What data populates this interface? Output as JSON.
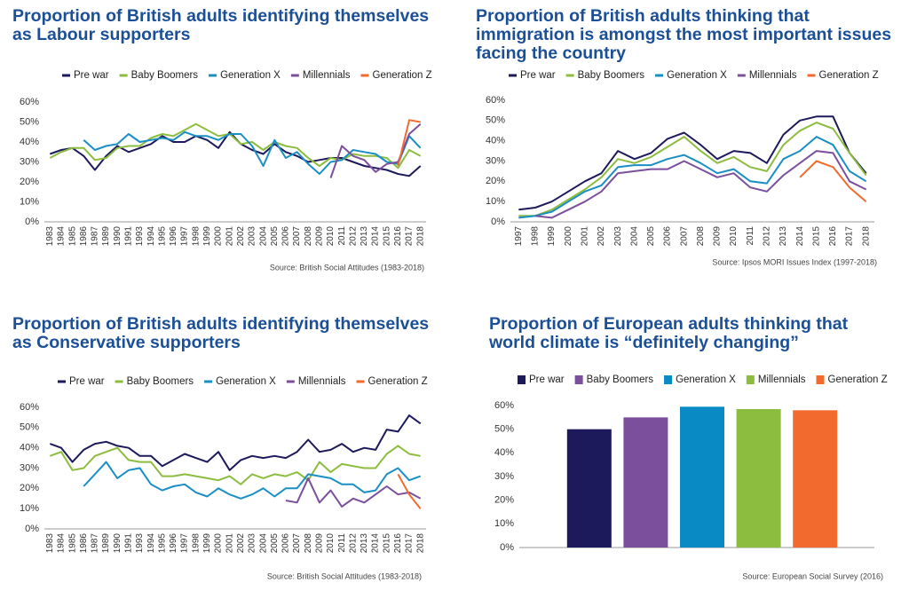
{
  "chart_data": [
    {
      "type": "line",
      "title": "Proportion of British adults identifying themselves as Labour supporters",
      "source": "Source: British Social Attitudes (1983-2018)",
      "categories": [
        "1983",
        "1984",
        "1985",
        "1986",
        "1987",
        "1989",
        "1990",
        "1991",
        "1993",
        "1994",
        "1995",
        "1996",
        "1997",
        "1998",
        "1999",
        "2000",
        "2001",
        "2002",
        "2003",
        "2004",
        "2005",
        "2006",
        "2007",
        "2008",
        "2009",
        "2010",
        "2011",
        "2012",
        "2013",
        "2014",
        "2015",
        "2016",
        "2017",
        "2018"
      ],
      "ylim": [
        0,
        60
      ],
      "yticks": [
        {
          "value": 0,
          "label": "0%"
        },
        {
          "value": 10,
          "label": "10%"
        },
        {
          "value": 20,
          "label": "20%"
        },
        {
          "value": 30,
          "label": "30%"
        },
        {
          "value": 40,
          "label": "40%"
        },
        {
          "value": 50,
          "label": "50%"
        },
        {
          "value": 60,
          "label": "60%"
        }
      ],
      "series": [
        {
          "name": "Pre war",
          "color": "#1d1a5c",
          "values": [
            34,
            36,
            37,
            33,
            26,
            33,
            38,
            35,
            37,
            39,
            43,
            40,
            40,
            43,
            41,
            37,
            45,
            39,
            36,
            34,
            39,
            35,
            33,
            30,
            31,
            32,
            32,
            30,
            28,
            27,
            26,
            24,
            23,
            28
          ]
        },
        {
          "name": "Baby Boomers",
          "color": "#8cbd3f",
          "values": [
            32,
            35,
            37,
            37,
            31,
            32,
            37,
            38,
            38,
            42,
            44,
            43,
            46,
            49,
            46,
            43,
            44,
            39,
            40,
            36,
            40,
            38,
            37,
            32,
            28,
            32,
            31,
            34,
            33,
            33,
            32,
            27,
            36,
            33
          ]
        },
        {
          "name": "Generation X",
          "color": "#1a8fc4",
          "values": [
            null,
            null,
            null,
            41,
            36,
            38,
            39,
            44,
            40,
            41,
            42,
            41,
            45,
            43,
            43,
            41,
            44,
            44,
            38,
            28,
            41,
            32,
            35,
            29,
            24,
            30,
            31,
            36,
            35,
            34,
            30,
            29,
            43,
            37
          ]
        },
        {
          "name": "Millennials",
          "color": "#7b4f9c",
          "values": [
            null,
            null,
            null,
            null,
            null,
            null,
            null,
            null,
            null,
            null,
            null,
            null,
            null,
            null,
            null,
            null,
            null,
            null,
            null,
            null,
            null,
            null,
            null,
            null,
            null,
            22,
            38,
            33,
            31,
            25,
            29,
            30,
            44,
            49
          ]
        },
        {
          "name": "Generation Z",
          "color": "#f26a2e",
          "values": [
            null,
            null,
            null,
            null,
            null,
            null,
            null,
            null,
            null,
            null,
            null,
            null,
            null,
            null,
            null,
            null,
            null,
            null,
            null,
            null,
            null,
            null,
            null,
            null,
            null,
            null,
            null,
            null,
            null,
            null,
            null,
            28,
            51,
            50
          ]
        }
      ]
    },
    {
      "type": "line",
      "title": "Proportion of British adults thinking that immigration is amongst the most important issues facing the country",
      "source": "Source: Ipsos MORI Issues Index (1997-2018)",
      "categories": [
        "1997",
        "1998",
        "1999",
        "2000",
        "2001",
        "2002",
        "2003",
        "2004",
        "2005",
        "2006",
        "2007",
        "2008",
        "2009",
        "2010",
        "2011",
        "2012",
        "2013",
        "2014",
        "2015",
        "2016",
        "2017",
        "2018"
      ],
      "ylim": [
        0,
        60
      ],
      "yticks": [
        {
          "value": 0,
          "label": "0%"
        },
        {
          "value": 10,
          "label": "10%"
        },
        {
          "value": 20,
          "label": "20%"
        },
        {
          "value": 30,
          "label": "30%"
        },
        {
          "value": 40,
          "label": "40%"
        },
        {
          "value": 50,
          "label": "50%"
        },
        {
          "value": 60,
          "label": "60%"
        }
      ],
      "series": [
        {
          "name": "Pre war",
          "color": "#1d1a5c",
          "values": [
            6,
            7,
            10,
            15,
            20,
            24,
            35,
            31,
            34,
            41,
            44,
            38,
            31,
            35,
            34,
            29,
            43,
            50,
            52,
            52,
            34,
            24
          ]
        },
        {
          "name": "Baby Boomers",
          "color": "#8cbd3f",
          "values": [
            3,
            3,
            6,
            11,
            16,
            22,
            31,
            29,
            32,
            37,
            42,
            35,
            29,
            32,
            27,
            25,
            38,
            45,
            49,
            46,
            34,
            23
          ]
        },
        {
          "name": "Generation X",
          "color": "#1a8fc4",
          "values": [
            2,
            3,
            5,
            10,
            15,
            18,
            27,
            28,
            28,
            31,
            33,
            29,
            24,
            26,
            20,
            19,
            31,
            35,
            42,
            38,
            25,
            20
          ]
        },
        {
          "name": "Millennials",
          "color": "#7b4f9c",
          "values": [
            null,
            3,
            2,
            6,
            10,
            15,
            24,
            25,
            26,
            26,
            30,
            26,
            22,
            24,
            17,
            15,
            23,
            29,
            35,
            34,
            20,
            16
          ]
        },
        {
          "name": "Generation Z",
          "color": "#f26a2e",
          "values": [
            null,
            null,
            null,
            null,
            null,
            null,
            null,
            null,
            null,
            null,
            null,
            null,
            null,
            null,
            null,
            null,
            null,
            22,
            30,
            27,
            17,
            10
          ]
        }
      ]
    },
    {
      "type": "line",
      "title": "Proportion of British adults identifying themselves as Conservative supporters",
      "source": "Source: British Social Attitudes (1983-2018)",
      "categories": [
        "1983",
        "1984",
        "1985",
        "1986",
        "1987",
        "1989",
        "1990",
        "1991",
        "1993",
        "1994",
        "1995",
        "1996",
        "1997",
        "1998",
        "1999",
        "2000",
        "2001",
        "2002",
        "2003",
        "2004",
        "2005",
        "2006",
        "2007",
        "2008",
        "2009",
        "2010",
        "2011",
        "2012",
        "2013",
        "2014",
        "2015",
        "2016",
        "2017",
        "2018"
      ],
      "ylim": [
        0,
        60
      ],
      "yticks": [
        {
          "value": 0,
          "label": "0%"
        },
        {
          "value": 10,
          "label": "10%"
        },
        {
          "value": 20,
          "label": "20%"
        },
        {
          "value": 30,
          "label": "30%"
        },
        {
          "value": 40,
          "label": "40%"
        },
        {
          "value": 50,
          "label": "50%"
        },
        {
          "value": 60,
          "label": "60%"
        }
      ],
      "series": [
        {
          "name": "Pre war",
          "color": "#1d1a5c",
          "values": [
            42,
            40,
            33,
            39,
            42,
            43,
            41,
            40,
            36,
            36,
            31,
            34,
            37,
            35,
            33,
            38,
            29,
            34,
            36,
            35,
            36,
            35,
            38,
            44,
            38,
            39,
            42,
            38,
            40,
            39,
            49,
            48,
            56,
            52
          ]
        },
        {
          "name": "Baby Boomers",
          "color": "#8cbd3f",
          "values": [
            36,
            38,
            29,
            30,
            36,
            38,
            40,
            34,
            33,
            33,
            26,
            26,
            27,
            26,
            25,
            24,
            26,
            22,
            27,
            25,
            27,
            26,
            28,
            24,
            33,
            28,
            32,
            31,
            30,
            30,
            37,
            41,
            37,
            36
          ]
        },
        {
          "name": "Generation X",
          "color": "#1a8fc4",
          "values": [
            null,
            null,
            null,
            21,
            27,
            33,
            25,
            29,
            30,
            22,
            19,
            21,
            22,
            18,
            16,
            20,
            17,
            15,
            17,
            20,
            16,
            20,
            20,
            27,
            26,
            25,
            22,
            22,
            18,
            19,
            27,
            30,
            24,
            26
          ]
        },
        {
          "name": "Millennials",
          "color": "#7b4f9c",
          "values": [
            null,
            null,
            null,
            null,
            null,
            null,
            null,
            null,
            null,
            null,
            null,
            null,
            null,
            null,
            null,
            null,
            null,
            null,
            null,
            null,
            null,
            14,
            13,
            25,
            13,
            19,
            11,
            15,
            13,
            17,
            21,
            17,
            18,
            15
          ]
        },
        {
          "name": "Generation Z",
          "color": "#f26a2e",
          "values": [
            null,
            null,
            null,
            null,
            null,
            null,
            null,
            null,
            null,
            null,
            null,
            null,
            null,
            null,
            null,
            null,
            null,
            null,
            null,
            null,
            null,
            null,
            null,
            null,
            null,
            null,
            null,
            null,
            null,
            null,
            null,
            27,
            17,
            10
          ]
        }
      ]
    },
    {
      "type": "bar",
      "title": "Proportion of European adults thinking that world climate is “definitely changing”",
      "source": "Source: European Social Survey (2016)",
      "categories": [
        "Pre war",
        "Baby Boomers",
        "Generation X",
        "Millennials",
        "Generation Z"
      ],
      "colors": [
        "#1d1a5c",
        "#7b4f9c",
        "#0a8ac4",
        "#8cbd3f",
        "#f26a2e"
      ],
      "values": [
        50,
        55,
        59.5,
        58.5,
        58
      ],
      "ylim": [
        0,
        60
      ],
      "yticks": [
        {
          "value": 0,
          "label": "0%"
        },
        {
          "value": 10,
          "label": "10%"
        },
        {
          "value": 20,
          "label": "20%"
        },
        {
          "value": 30,
          "label": "30%"
        },
        {
          "value": 40,
          "label": "40%"
        },
        {
          "value": 50,
          "label": "50%"
        },
        {
          "value": 60,
          "label": "60%"
        }
      ]
    }
  ]
}
